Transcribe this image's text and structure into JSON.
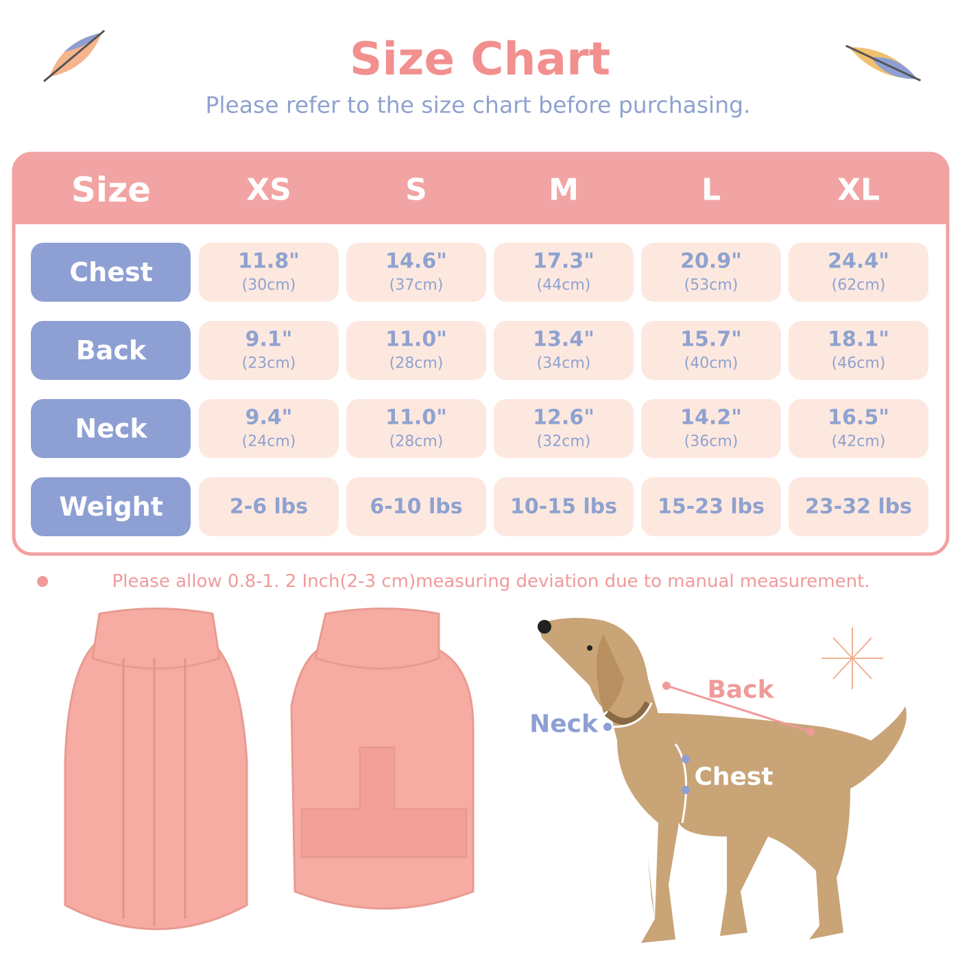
{
  "header": {
    "title": "Size Chart",
    "subtitle": "Please refer to the size chart before purchasing."
  },
  "table": {
    "header": [
      "Size",
      "XS",
      "S",
      "M",
      "L",
      "XL"
    ],
    "rows": [
      {
        "label": "Chest",
        "cells": [
          [
            "11.8\"",
            "(30cm)"
          ],
          [
            "14.6\"",
            "(37cm)"
          ],
          [
            "17.3\"",
            "(44cm)"
          ],
          [
            "20.9\"",
            "(53cm)"
          ],
          [
            "24.4\"",
            "(62cm)"
          ]
        ]
      },
      {
        "label": "Back",
        "cells": [
          [
            "9.1\"",
            "(23cm)"
          ],
          [
            "11.0\"",
            "(28cm)"
          ],
          [
            "13.4\"",
            "(34cm)"
          ],
          [
            "15.7\"",
            "(40cm)"
          ],
          [
            "18.1\"",
            "(46cm)"
          ]
        ]
      },
      {
        "label": "Neck",
        "cells": [
          [
            "9.4\"",
            "(24cm)"
          ],
          [
            "11.0\"",
            "(28cm)"
          ],
          [
            "12.6\"",
            "(32cm)"
          ],
          [
            "14.2\"",
            "(36cm)"
          ],
          [
            "16.5\"",
            "(42cm)"
          ]
        ]
      },
      {
        "label": "Weight",
        "cells": [
          [
            "2-6 lbs"
          ],
          [
            "6-10 lbs"
          ],
          [
            "10-15 lbs"
          ],
          [
            "15-23 lbs"
          ],
          [
            "23-32 lbs"
          ]
        ]
      }
    ]
  },
  "note": "Please allow 0.8-1. 2 Inch(2-3 cm)measuring deviation due to manual measurement.",
  "diagram": {
    "back": "Back",
    "neck": "Neck",
    "chest": "Chest"
  }
}
